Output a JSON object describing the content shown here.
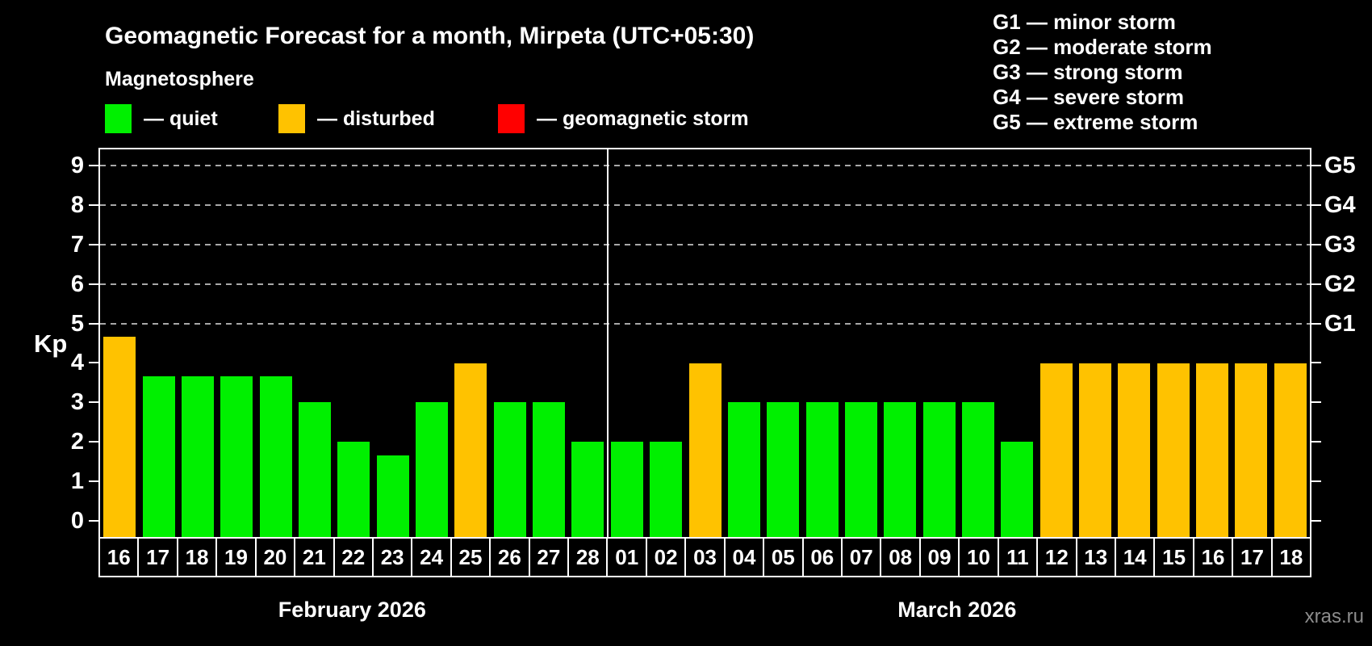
{
  "title": "Geomagnetic Forecast for a month, Mirpeta (UTC+05:30)",
  "subtitle": "Magnetosphere",
  "legend": {
    "quiet": {
      "label": "— quiet",
      "color": "#00f000"
    },
    "disturbed": {
      "label": "— disturbed",
      "color": "#ffc200"
    },
    "storm": {
      "label": "— geomagnetic storm",
      "color": "#ff0000"
    }
  },
  "g_legend": {
    "g1": "G1 — minor storm",
    "g2": "G2 — moderate storm",
    "g3": "G3 — strong storm",
    "g4": "G4 — severe storm",
    "g5": "G5 — extreme storm"
  },
  "watermark": "xras.ru",
  "chart_data": {
    "type": "bar",
    "title": "Geomagnetic Forecast for a month, Mirpeta (UTC+05:30)",
    "ylabel": "Kp",
    "ylim": [
      0,
      9
    ],
    "y_ticks": [
      "0",
      "1",
      "2",
      "3",
      "4",
      "5",
      "6",
      "7",
      "8",
      "9"
    ],
    "grid_values": [
      5,
      6,
      7,
      8,
      9
    ],
    "right_axis_labels": [
      {
        "value": 5,
        "label": "G1"
      },
      {
        "value": 6,
        "label": "G2"
      },
      {
        "value": 7,
        "label": "G3"
      },
      {
        "value": 8,
        "label": "G4"
      },
      {
        "value": 9,
        "label": "G5"
      }
    ],
    "legend_position": "top",
    "grid": "dashed horizontal at 5-9 only",
    "status_colors": {
      "quiet": "#00f000",
      "disturbed": "#ffc200",
      "storm": "#ff0000"
    },
    "months": [
      {
        "name": "February 2026",
        "days": [
          {
            "day": "16",
            "kp": 4.67,
            "status": "disturbed"
          },
          {
            "day": "17",
            "kp": 3.67,
            "status": "quiet"
          },
          {
            "day": "18",
            "kp": 3.67,
            "status": "quiet"
          },
          {
            "day": "19",
            "kp": 3.67,
            "status": "quiet"
          },
          {
            "day": "20",
            "kp": 3.67,
            "status": "quiet"
          },
          {
            "day": "21",
            "kp": 3.0,
            "status": "quiet"
          },
          {
            "day": "22",
            "kp": 2.0,
            "status": "quiet"
          },
          {
            "day": "23",
            "kp": 1.67,
            "status": "quiet"
          },
          {
            "day": "24",
            "kp": 3.0,
            "status": "quiet"
          },
          {
            "day": "25",
            "kp": 4.0,
            "status": "disturbed"
          },
          {
            "day": "26",
            "kp": 3.0,
            "status": "quiet"
          },
          {
            "day": "27",
            "kp": 3.0,
            "status": "quiet"
          },
          {
            "day": "28",
            "kp": 2.0,
            "status": "quiet"
          }
        ]
      },
      {
        "name": "March 2026",
        "days": [
          {
            "day": "01",
            "kp": 2.0,
            "status": "quiet"
          },
          {
            "day": "02",
            "kp": 2.0,
            "status": "quiet"
          },
          {
            "day": "03",
            "kp": 4.0,
            "status": "disturbed"
          },
          {
            "day": "04",
            "kp": 3.0,
            "status": "quiet"
          },
          {
            "day": "05",
            "kp": 3.0,
            "status": "quiet"
          },
          {
            "day": "06",
            "kp": 3.0,
            "status": "quiet"
          },
          {
            "day": "07",
            "kp": 3.0,
            "status": "quiet"
          },
          {
            "day": "08",
            "kp": 3.0,
            "status": "quiet"
          },
          {
            "day": "09",
            "kp": 3.0,
            "status": "quiet"
          },
          {
            "day": "10",
            "kp": 3.0,
            "status": "quiet"
          },
          {
            "day": "11",
            "kp": 2.0,
            "status": "quiet"
          },
          {
            "day": "12",
            "kp": 4.0,
            "status": "disturbed"
          },
          {
            "day": "13",
            "kp": 4.0,
            "status": "disturbed"
          },
          {
            "day": "14",
            "kp": 4.0,
            "status": "disturbed"
          },
          {
            "day": "15",
            "kp": 4.0,
            "status": "disturbed"
          },
          {
            "day": "16",
            "kp": 4.0,
            "status": "disturbed"
          },
          {
            "day": "17",
            "kp": 4.0,
            "status": "disturbed"
          },
          {
            "day": "18",
            "kp": 4.0,
            "status": "disturbed"
          }
        ]
      }
    ]
  }
}
